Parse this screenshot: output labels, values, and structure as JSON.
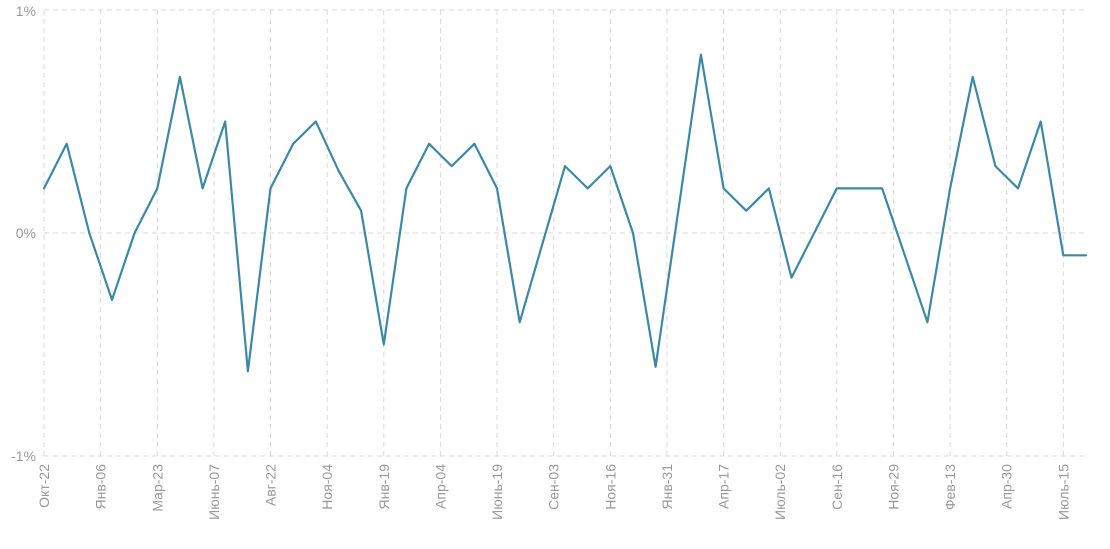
{
  "chart_data": {
    "type": "line",
    "title": "",
    "xlabel": "",
    "ylabel": "",
    "ylim": [
      -0.01,
      0.01
    ],
    "grid": true,
    "y_ticks": [
      {
        "value": 0.01,
        "label": "1%"
      },
      {
        "value": 0,
        "label": "0%"
      },
      {
        "value": -0.01,
        "label": "-1%"
      }
    ],
    "x_tick_labels": [
      "Окт-22",
      "Янв-06",
      "Мар-23",
      "Июнь-07",
      "Авг-22",
      "Ноя-04",
      "Янв-19",
      "Апр-04",
      "Июнь-19",
      "Сен-03",
      "Ноя-16",
      "Янв-31",
      "Апр-17",
      "Июль-02",
      "Сен-16",
      "Ноя-29",
      "Фев-13",
      "Апр-30",
      "Июль-15"
    ],
    "x_tick_positions": [
      0,
      2.5,
      5,
      7.5,
      10,
      12.5,
      15,
      17.5,
      20,
      22.5,
      25,
      27.5,
      30,
      32.5,
      35,
      37.5,
      40,
      42.5,
      45
    ],
    "colors": {
      "series": "#3b89a6",
      "grid": "#d9d9d9",
      "tick_text": "#9a9a9a"
    },
    "series": [
      {
        "values": [
          0.002,
          0.004,
          0,
          -0.003,
          0,
          0.002,
          0.007,
          0.002,
          0.005,
          -0.0062,
          0.002,
          0.004,
          0.005,
          0.0028,
          0.001,
          -0.005,
          0.002,
          0.004,
          0.003,
          0.004,
          0.002,
          -0.004,
          -0.0005,
          0.003,
          0.002,
          0.003,
          0,
          -0.006,
          0.001,
          0.008,
          0.002,
          0.001,
          0.002,
          -0.002,
          0,
          0.002,
          0.002,
          0.002,
          -0.001,
          -0.004,
          0.002,
          0.007,
          0.003,
          0.002,
          0.005,
          -0.001,
          -0.001
        ]
      }
    ]
  }
}
